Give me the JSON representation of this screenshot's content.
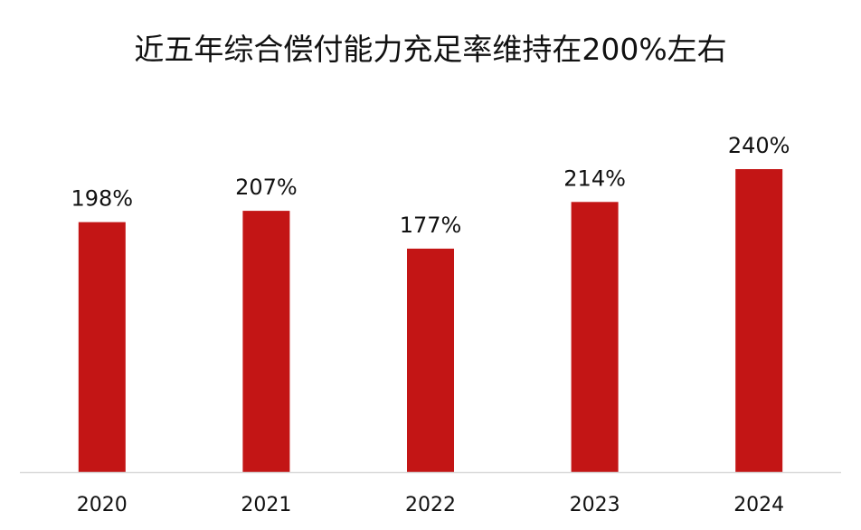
{
  "chart_data": {
    "type": "bar",
    "title": "近五年综合偿付能力充足率维持在200%左右",
    "categories": [
      "2020",
      "2021",
      "2022",
      "2023",
      "2024"
    ],
    "values": [
      198,
      207,
      177,
      214,
      240
    ],
    "data_labels": [
      "198%",
      "207%",
      "177%",
      "214%",
      "240%"
    ],
    "xlabel": "",
    "ylabel": "",
    "ylim": [
      0,
      240
    ],
    "grid": false,
    "legend": "none",
    "bar_color": "#C31515",
    "axis_color": "#D9D9D9"
  }
}
